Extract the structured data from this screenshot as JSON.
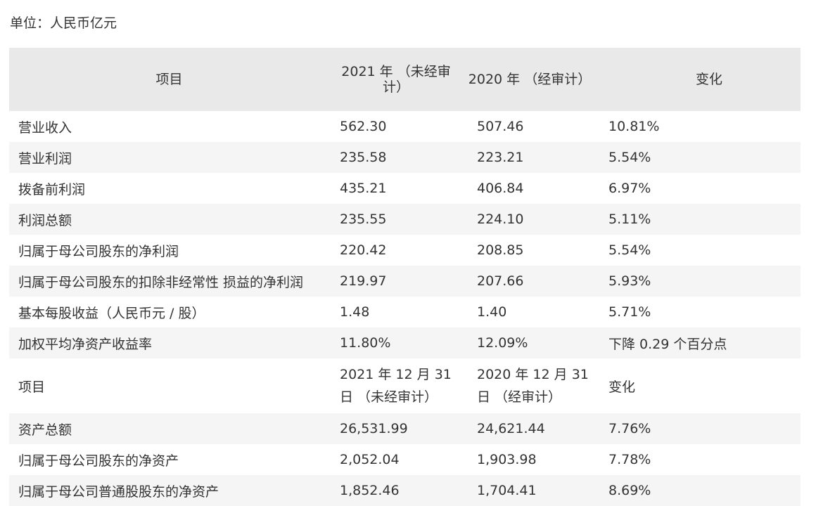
{
  "unit_label": "单位：人民币亿元",
  "header": {
    "col1": "项目",
    "col2": "2021 年 （未经审计）",
    "col3": "2020 年 （经审计）",
    "col4": "变化"
  },
  "rows": [
    {
      "item": "营业收入",
      "y2021": "562.30",
      "y2020": "507.46",
      "change": "10.81%"
    },
    {
      "item": "营业利润",
      "y2021": "235.58",
      "y2020": "223.21",
      "change": "5.54%"
    },
    {
      "item": "拨备前利润",
      "y2021": "435.21",
      "y2020": "406.84",
      "change": "6.97%"
    },
    {
      "item": "利润总额",
      "y2021": "235.55",
      "y2020": "224.10",
      "change": "5.11%"
    },
    {
      "item": "归属于母公司股东的净利润",
      "y2021": "220.42",
      "y2020": "208.85",
      "change": "5.54%"
    },
    {
      "item": "归属于母公司股东的扣除非经常性 损益的净利润",
      "y2021": "219.97",
      "y2020": "207.66",
      "change": "5.93%"
    },
    {
      "item": "基本每股收益（人民币元 / 股）",
      "y2021": "1.48",
      "y2020": "1.40",
      "change": "5.71%"
    },
    {
      "item": "加权平均净资产收益率",
      "y2021": "11.80%",
      "y2020": "12.09%",
      "change": "下降 0.29 个百分点"
    }
  ],
  "subheader": {
    "col1": "项目",
    "col2": "2021 年 12 月 31 日 （未经审计）",
    "col3": "2020 年 12 月 31 日 （经审计）",
    "col4": "变化"
  },
  "rows2": [
    {
      "item": "资产总额",
      "y2021": "26,531.99",
      "y2020": "24,621.44",
      "change": "7.76%"
    },
    {
      "item": "归属于母公司股东的净资产",
      "y2021": "2,052.04",
      "y2020": "1,903.98",
      "change": "7.78%"
    },
    {
      "item": "归属于母公司普通股股东的净资产",
      "y2021": "1,852.46",
      "y2020": "1,704.41",
      "change": "8.69%"
    }
  ]
}
